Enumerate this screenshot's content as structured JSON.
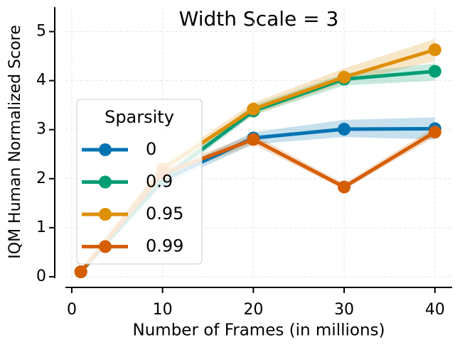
{
  "chart_data": {
    "type": "line",
    "title": "Width Scale = 3",
    "x_label": "Number of Frames (in millions)",
    "y_label": "IQM Human Normalized Score",
    "x": [
      1,
      10,
      20,
      30,
      40
    ],
    "series": [
      {
        "name": "0",
        "color": "#0173b2",
        "values": [
          0.1,
          1.97,
          2.83,
          3.01,
          3.02
        ],
        "lower": [
          0.05,
          1.87,
          2.7,
          2.85,
          2.8
        ],
        "upper": [
          0.15,
          2.07,
          2.95,
          3.2,
          3.25
        ]
      },
      {
        "name": "0.9",
        "color": "#029e73",
        "values": [
          0.1,
          2.0,
          3.38,
          4.03,
          4.19
        ],
        "lower": [
          0.05,
          1.9,
          3.3,
          3.9,
          4.0
        ],
        "upper": [
          0.15,
          2.1,
          3.5,
          4.15,
          4.35
        ]
      },
      {
        "name": "0.95",
        "color": "#de8f05",
        "values": [
          0.1,
          2.2,
          3.42,
          4.07,
          4.63
        ],
        "lower": [
          0.05,
          2.1,
          3.3,
          3.95,
          4.4
        ],
        "upper": [
          0.15,
          2.3,
          3.55,
          4.25,
          4.85
        ]
      },
      {
        "name": "0.99",
        "color": "#d55e00",
        "values": [
          0.1,
          2.1,
          2.8,
          1.83,
          2.95
        ],
        "lower": [
          0.05,
          2.0,
          2.7,
          1.78,
          2.85
        ],
        "upper": [
          0.15,
          2.2,
          2.9,
          1.9,
          3.05
        ]
      }
    ],
    "legend_title": "Sparsity",
    "legend": "center-left",
    "xlim": [
      -0.7,
      41.9
    ],
    "xticks": [
      0,
      10,
      20,
      30,
      40
    ],
    "ylim": [
      -0.03,
      5.5
    ],
    "yticks": [
      0,
      1,
      2,
      3,
      4,
      5
    ],
    "grid": true
  }
}
